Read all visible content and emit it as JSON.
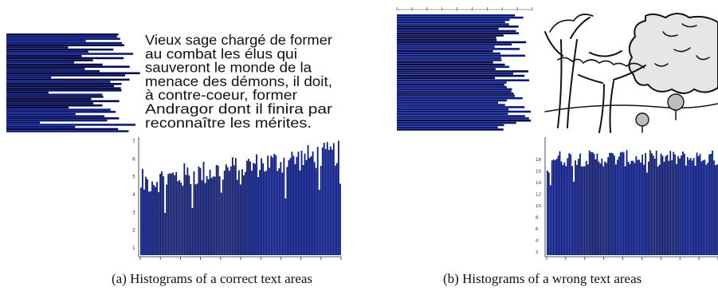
{
  "panel_a": {
    "caption": "(a) Histograms of a correct text areas",
    "text_lines": [
      "Vieux sage chargé de former",
      "au combat les élus qui",
      "sauveront le monde de la",
      "menace des démons, il doit,",
      "à contre-coeur, former",
      "Andragor dont il finira par",
      "reconnaître les mérites."
    ],
    "bottom_y_ticks": [
      "7",
      "6",
      "5",
      "4",
      "3",
      "2",
      "1"
    ]
  },
  "panel_b": {
    "caption": "(b) Histograms of a wrong text areas",
    "image_description_hidden": "",
    "bottom_y_ticks": [
      "18",
      "16",
      "14",
      "12",
      "10",
      "8",
      "6",
      "4",
      "2"
    ]
  },
  "colors": {
    "bar": "#0c1a7a",
    "bar_dark": "#060c4a",
    "text": "#111111"
  }
}
